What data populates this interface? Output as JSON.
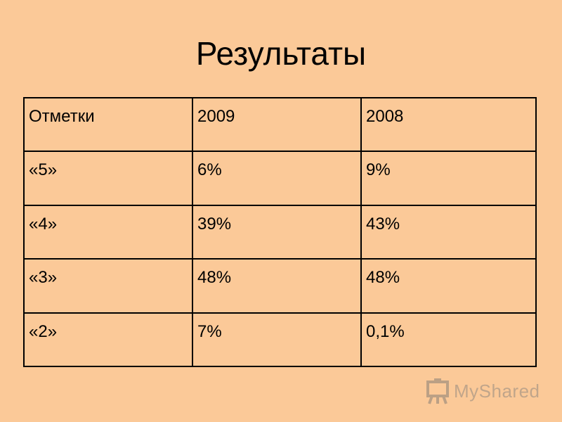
{
  "slide": {
    "title": "Результаты"
  },
  "table": {
    "header": [
      "Отметки",
      "2009",
      "2008"
    ],
    "rows": [
      [
        "«5»",
        "6%",
        "9%"
      ],
      [
        "«4»",
        "39%",
        "43%"
      ],
      [
        "«3»",
        "48%",
        "48%"
      ],
      [
        "«2»",
        "7%",
        "0,1%"
      ]
    ]
  },
  "watermark": {
    "text": "MyShared",
    "icon": "presentation-board-icon"
  },
  "colors": {
    "background": "#fbc998",
    "text": "#000000"
  }
}
